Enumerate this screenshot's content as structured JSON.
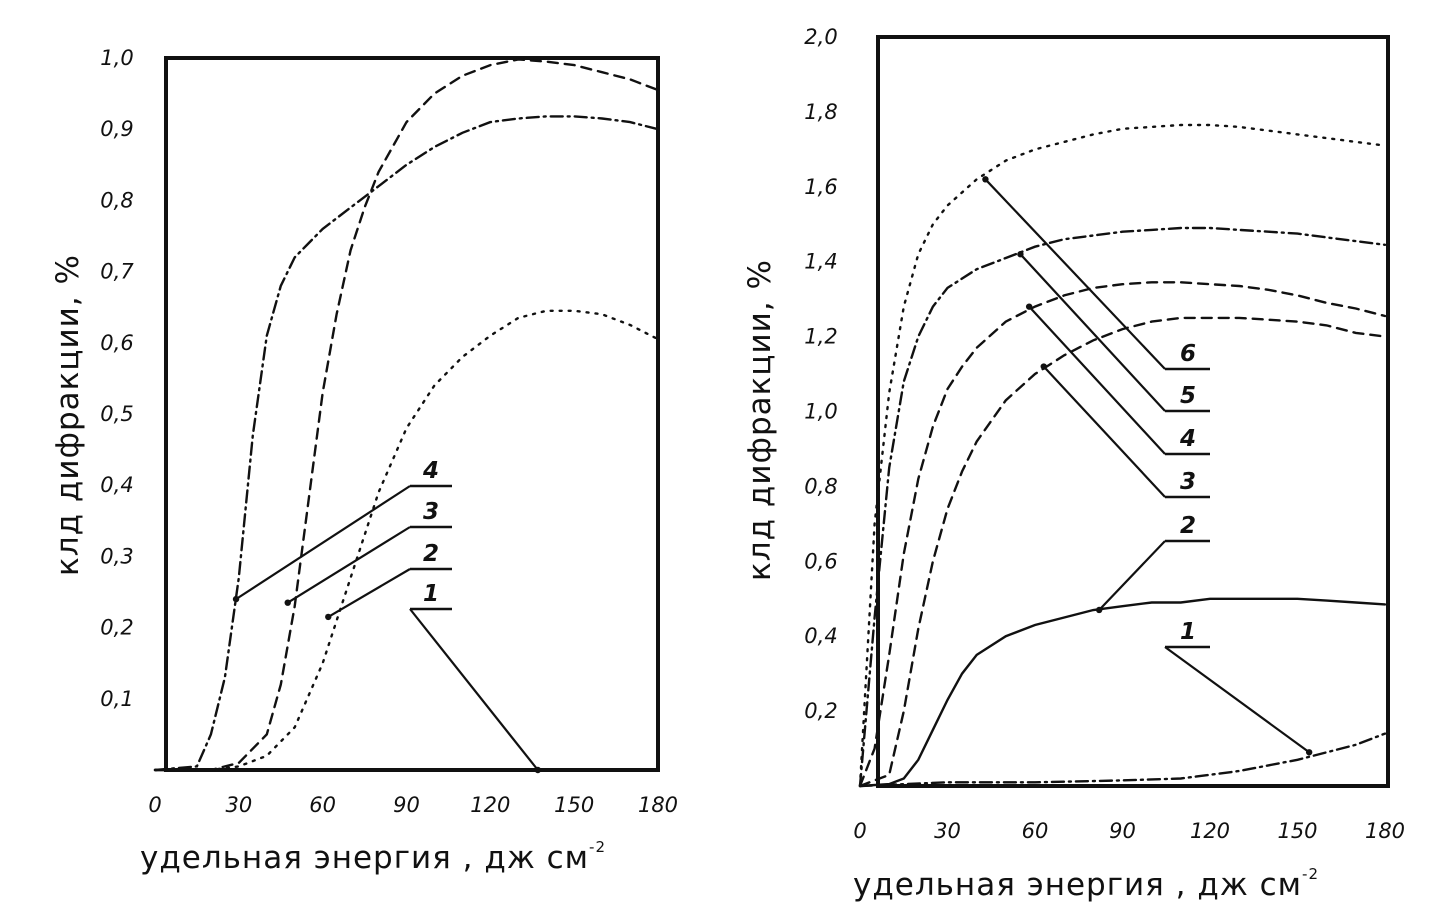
{
  "chart_data": [
    {
      "type": "line",
      "title": "",
      "xlabel": "удельная энергия , дж см",
      "xlabel_superscript": "-2",
      "ylabel": "клд дифракции, %",
      "xlim": [
        0,
        180
      ],
      "ylim": [
        0,
        1.0
      ],
      "xticks": [
        {
          "value": 0,
          "label": "0"
        },
        {
          "value": 30,
          "label": "30"
        },
        {
          "value": 60,
          "label": "60"
        },
        {
          "value": 90,
          "label": "90"
        },
        {
          "value": 120,
          "label": "120"
        },
        {
          "value": 150,
          "label": "150"
        },
        {
          "value": 180,
          "label": "180"
        }
      ],
      "yticks": [
        {
          "value": 0.1,
          "label": "0,1"
        },
        {
          "value": 0.2,
          "label": "0,2"
        },
        {
          "value": 0.3,
          "label": "0,3"
        },
        {
          "value": 0.4,
          "label": "0,4"
        },
        {
          "value": 0.5,
          "label": "0,5"
        },
        {
          "value": 0.6,
          "label": "0,6"
        },
        {
          "value": 0.7,
          "label": "0,7"
        },
        {
          "value": 0.8,
          "label": "0,8"
        },
        {
          "value": 0.9,
          "label": "0,9"
        },
        {
          "value": 1.0,
          "label": "1,0"
        }
      ],
      "grid": false,
      "series": [
        {
          "name": "1",
          "style": "solid",
          "x": [
            0,
            180
          ],
          "y": [
            0.0,
            0.0
          ]
        },
        {
          "name": "2",
          "style": "dotted",
          "x": [
            0,
            20,
            30,
            40,
            50,
            60,
            70,
            80,
            90,
            100,
            110,
            120,
            130,
            140,
            150,
            160,
            170,
            180
          ],
          "y": [
            0.0,
            0.0,
            0.005,
            0.02,
            0.06,
            0.15,
            0.27,
            0.39,
            0.48,
            0.54,
            0.58,
            0.61,
            0.635,
            0.645,
            0.645,
            0.64,
            0.625,
            0.605
          ]
        },
        {
          "name": "3",
          "style": "dashed",
          "x": [
            0,
            20,
            30,
            40,
            45,
            50,
            55,
            60,
            65,
            70,
            75,
            80,
            90,
            100,
            110,
            120,
            130,
            140,
            150,
            160,
            170,
            180
          ],
          "y": [
            0.0,
            0.0,
            0.01,
            0.05,
            0.12,
            0.23,
            0.38,
            0.53,
            0.64,
            0.73,
            0.79,
            0.84,
            0.91,
            0.95,
            0.975,
            0.99,
            0.998,
            0.995,
            0.99,
            0.98,
            0.97,
            0.955
          ]
        },
        {
          "name": "4",
          "style": "dashdot",
          "x": [
            0,
            15,
            20,
            25,
            30,
            35,
            40,
            45,
            50,
            55,
            60,
            70,
            80,
            90,
            100,
            110,
            120,
            130,
            140,
            150,
            160,
            170,
            180
          ],
          "y": [
            0.0,
            0.005,
            0.05,
            0.13,
            0.27,
            0.47,
            0.61,
            0.68,
            0.72,
            0.74,
            0.76,
            0.79,
            0.82,
            0.85,
            0.875,
            0.895,
            0.91,
            0.915,
            0.918,
            0.918,
            0.915,
            0.91,
            0.9
          ]
        }
      ],
      "callouts": [
        {
          "label": "4",
          "series": "4",
          "at_x": 29,
          "at_y": 0.24
        },
        {
          "label": "3",
          "series": "3",
          "at_x": 47.5,
          "at_y": 0.235
        },
        {
          "label": "2",
          "series": "2",
          "at_x": 62,
          "at_y": 0.215
        },
        {
          "label": "1",
          "series": "1",
          "at_x": 137,
          "at_y": 0.0
        }
      ]
    },
    {
      "type": "line",
      "title": "",
      "xlabel": "удельная энергия , дж см",
      "xlabel_superscript": "-2",
      "ylabel": "клд дифракции, %",
      "xlim": [
        0,
        180
      ],
      "ylim": [
        0,
        2.0
      ],
      "xticks": [
        {
          "value": 0,
          "label": "0"
        },
        {
          "value": 30,
          "label": "30"
        },
        {
          "value": 60,
          "label": "60"
        },
        {
          "value": 90,
          "label": "90"
        },
        {
          "value": 120,
          "label": "120"
        },
        {
          "value": 150,
          "label": "150"
        },
        {
          "value": 180,
          "label": "180"
        }
      ],
      "yticks": [
        {
          "value": 0.2,
          "label": "0,2"
        },
        {
          "value": 0.4,
          "label": "0,4"
        },
        {
          "value": 0.6,
          "label": "0,6"
        },
        {
          "value": 0.8,
          "label": "0,8"
        },
        {
          "value": 1.0,
          "label": "1,0"
        },
        {
          "value": 1.2,
          "label": "1,2"
        },
        {
          "value": 1.4,
          "label": "1,4"
        },
        {
          "value": 1.6,
          "label": "1,6"
        },
        {
          "value": 1.8,
          "label": "1,8"
        },
        {
          "value": 2.0,
          "label": "2,0"
        }
      ],
      "grid": false,
      "series": [
        {
          "name": "1",
          "style": "dashdot",
          "x": [
            0,
            30,
            60,
            90,
            110,
            120,
            130,
            140,
            150,
            160,
            170,
            180
          ],
          "y": [
            0.0,
            0.01,
            0.01,
            0.015,
            0.02,
            0.03,
            0.04,
            0.055,
            0.07,
            0.09,
            0.11,
            0.14
          ]
        },
        {
          "name": "2",
          "style": "solid",
          "x": [
            0,
            10,
            15,
            20,
            25,
            30,
            35,
            40,
            50,
            60,
            70,
            80,
            90,
            100,
            110,
            120,
            130,
            140,
            150,
            160,
            170,
            180
          ],
          "y": [
            0.0,
            0.005,
            0.02,
            0.07,
            0.15,
            0.23,
            0.3,
            0.35,
            0.4,
            0.43,
            0.45,
            0.47,
            0.48,
            0.49,
            0.49,
            0.5,
            0.5,
            0.5,
            0.5,
            0.495,
            0.49,
            0.485
          ]
        },
        {
          "name": "3",
          "style": "dashed",
          "x": [
            0,
            10,
            15,
            20,
            25,
            30,
            35,
            40,
            50,
            60,
            70,
            80,
            90,
            100,
            110,
            120,
            130,
            140,
            150,
            160,
            170,
            180
          ],
          "y": [
            0.0,
            0.03,
            0.2,
            0.42,
            0.6,
            0.74,
            0.84,
            0.92,
            1.03,
            1.1,
            1.15,
            1.19,
            1.22,
            1.24,
            1.25,
            1.25,
            1.25,
            1.245,
            1.24,
            1.23,
            1.21,
            1.2
          ]
        },
        {
          "name": "4",
          "style": "dashed",
          "x": [
            0,
            5,
            10,
            15,
            20,
            25,
            30,
            35,
            40,
            50,
            60,
            70,
            80,
            90,
            100,
            110,
            120,
            130,
            140,
            150,
            160,
            170,
            180
          ],
          "y": [
            0.0,
            0.1,
            0.35,
            0.62,
            0.82,
            0.96,
            1.06,
            1.12,
            1.17,
            1.24,
            1.28,
            1.31,
            1.33,
            1.34,
            1.345,
            1.345,
            1.34,
            1.335,
            1.325,
            1.31,
            1.29,
            1.275,
            1.255
          ]
        },
        {
          "name": "5",
          "style": "dashdot",
          "x": [
            0,
            5,
            10,
            15,
            20,
            25,
            30,
            40,
            50,
            60,
            70,
            80,
            90,
            100,
            110,
            120,
            130,
            140,
            150,
            160,
            170,
            180
          ],
          "y": [
            0.0,
            0.45,
            0.85,
            1.08,
            1.2,
            1.28,
            1.33,
            1.38,
            1.41,
            1.44,
            1.46,
            1.47,
            1.48,
            1.485,
            1.49,
            1.49,
            1.485,
            1.48,
            1.475,
            1.465,
            1.455,
            1.445
          ]
        },
        {
          "name": "6",
          "style": "dotted",
          "x": [
            0,
            5,
            10,
            15,
            20,
            25,
            30,
            40,
            50,
            60,
            70,
            80,
            90,
            100,
            110,
            120,
            130,
            140,
            150,
            160,
            170,
            180
          ],
          "y": [
            0.0,
            0.7,
            1.05,
            1.28,
            1.42,
            1.5,
            1.55,
            1.62,
            1.67,
            1.7,
            1.72,
            1.74,
            1.755,
            1.76,
            1.765,
            1.765,
            1.76,
            1.75,
            1.74,
            1.73,
            1.72,
            1.71
          ]
        }
      ],
      "callouts": [
        {
          "label": "6",
          "series": "6",
          "at_x": 43,
          "at_y": 1.62
        },
        {
          "label": "5",
          "series": "5",
          "at_x": 55,
          "at_y": 1.42
        },
        {
          "label": "4",
          "series": "4",
          "at_x": 58,
          "at_y": 1.28
        },
        {
          "label": "3",
          "series": "3",
          "at_x": 63,
          "at_y": 1.12
        },
        {
          "label": "2",
          "series": "2",
          "at_x": 82,
          "at_y": 0.47
        },
        {
          "label": "1",
          "series": "1",
          "at_x": 154,
          "at_y": 0.09
        }
      ]
    }
  ]
}
